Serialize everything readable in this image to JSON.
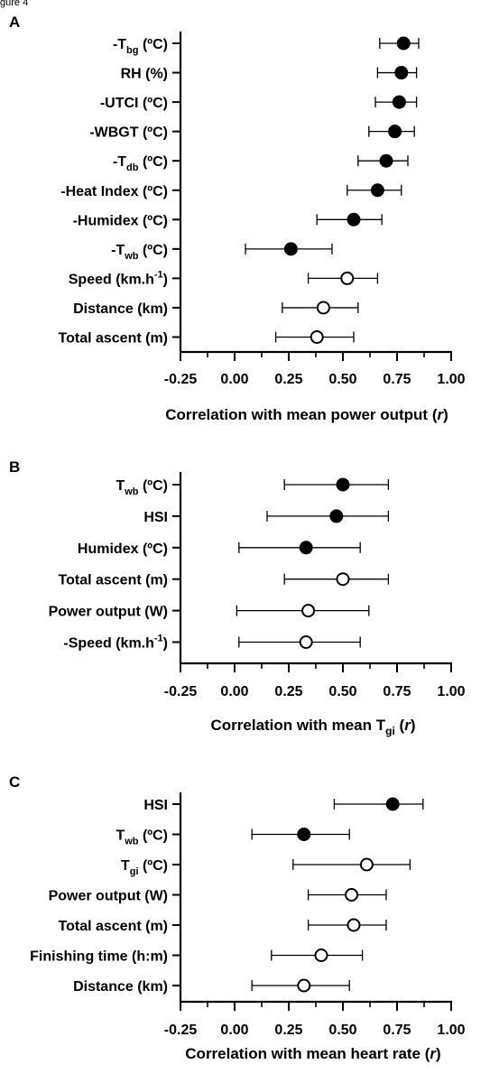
{
  "figure_label": "gure 4",
  "chart_data": [
    {
      "panel": "A",
      "type": "scatter",
      "xlabel_parts": [
        {
          "t": "Correlation with mean power output ("
        },
        {
          "t": "r",
          "i": true
        },
        {
          "t": ")"
        }
      ],
      "xlim": [
        -0.25,
        1.0
      ],
      "xticks": [
        "-0.25",
        "0.00",
        "0.25",
        "0.50",
        "0.75",
        "1.00"
      ],
      "xtick_values": [
        -0.25,
        0.0,
        0.25,
        0.5,
        0.75,
        1.0
      ],
      "grid": false,
      "rows": [
        {
          "label": [
            {
              "t": "-T"
            },
            {
              "t": "bg",
              "sub": true
            },
            {
              "t": " (ºC)"
            }
          ],
          "label_text": "-Tbg (ºC)",
          "r": 0.78,
          "lo": 0.67,
          "hi": 0.85,
          "filled": true
        },
        {
          "label": [
            {
              "t": "RH (%)"
            }
          ],
          "label_text": "RH (%)",
          "r": 0.77,
          "lo": 0.66,
          "hi": 0.84,
          "filled": true
        },
        {
          "label": [
            {
              "t": "-UTCI (ºC)"
            }
          ],
          "label_text": "-UTCI (ºC)",
          "r": 0.76,
          "lo": 0.65,
          "hi": 0.84,
          "filled": true
        },
        {
          "label": [
            {
              "t": "-WBGT (ºC)"
            }
          ],
          "label_text": "-WBGT (ºC)",
          "r": 0.74,
          "lo": 0.62,
          "hi": 0.83,
          "filled": true
        },
        {
          "label": [
            {
              "t": "-T"
            },
            {
              "t": "db",
              "sub": true
            },
            {
              "t": " (ºC)"
            }
          ],
          "label_text": "-Tdb (ºC)",
          "r": 0.7,
          "lo": 0.57,
          "hi": 0.8,
          "filled": true
        },
        {
          "label": [
            {
              "t": "-Heat Index (ºC)"
            }
          ],
          "label_text": "-Heat Index (ºC)",
          "r": 0.66,
          "lo": 0.52,
          "hi": 0.77,
          "filled": true
        },
        {
          "label": [
            {
              "t": "-Humidex (ºC)"
            }
          ],
          "label_text": "-Humidex (ºC)",
          "r": 0.55,
          "lo": 0.38,
          "hi": 0.68,
          "filled": true
        },
        {
          "label": [
            {
              "t": "-T"
            },
            {
              "t": "wb",
              "sub": true
            },
            {
              "t": " (ºC)"
            }
          ],
          "label_text": "-Twb (ºC)",
          "r": 0.26,
          "lo": 0.05,
          "hi": 0.45,
          "filled": true
        },
        {
          "label": [
            {
              "t": "Speed (km.h"
            },
            {
              "t": "-1",
              "sup": true
            },
            {
              "t": ")"
            }
          ],
          "label_text": "Speed (km.h-1)",
          "r": 0.52,
          "lo": 0.34,
          "hi": 0.66,
          "filled": false
        },
        {
          "label": [
            {
              "t": "Distance (km)"
            }
          ],
          "label_text": "Distance (km)",
          "r": 0.41,
          "lo": 0.22,
          "hi": 0.57,
          "filled": false
        },
        {
          "label": [
            {
              "t": "Total ascent (m)"
            }
          ],
          "label_text": "Total ascent (m)",
          "r": 0.38,
          "lo": 0.19,
          "hi": 0.55,
          "filled": false
        }
      ]
    },
    {
      "panel": "B",
      "type": "scatter",
      "xlabel_parts": [
        {
          "t": "Correlation with mean T"
        },
        {
          "t": "gi",
          "sub": true
        },
        {
          "t": " ("
        },
        {
          "t": "r",
          "i": true
        },
        {
          "t": ")"
        }
      ],
      "xlim": [
        -0.25,
        1.0
      ],
      "xticks": [
        "-0.25",
        "0.00",
        "0.25",
        "0.50",
        "0.75",
        "1.00"
      ],
      "xtick_values": [
        -0.25,
        0.0,
        0.25,
        0.5,
        0.75,
        1.0
      ],
      "grid": false,
      "rows": [
        {
          "label": [
            {
              "t": "T"
            },
            {
              "t": "wb",
              "sub": true
            },
            {
              "t": " (ºC)"
            }
          ],
          "label_text": "Twb (ºC)",
          "r": 0.5,
          "lo": 0.23,
          "hi": 0.71,
          "filled": true
        },
        {
          "label": [
            {
              "t": "HSI"
            }
          ],
          "label_text": "HSI",
          "r": 0.47,
          "lo": 0.15,
          "hi": 0.71,
          "filled": true
        },
        {
          "label": [
            {
              "t": "Humidex (ºC)"
            }
          ],
          "label_text": "Humidex (ºC)",
          "r": 0.33,
          "lo": 0.02,
          "hi": 0.58,
          "filled": true
        },
        {
          "label": [
            {
              "t": "Total ascent (m)"
            }
          ],
          "label_text": "Total ascent (m)",
          "r": 0.5,
          "lo": 0.23,
          "hi": 0.71,
          "filled": false
        },
        {
          "label": [
            {
              "t": "Power output (W)"
            }
          ],
          "label_text": "Power output (W)",
          "r": 0.34,
          "lo": 0.01,
          "hi": 0.62,
          "filled": false
        },
        {
          "label": [
            {
              "t": "-Speed (km.h"
            },
            {
              "t": "-1",
              "sup": true
            },
            {
              "t": ")"
            }
          ],
          "label_text": "-Speed (km.h-1)",
          "r": 0.33,
          "lo": 0.02,
          "hi": 0.58,
          "filled": false
        }
      ]
    },
    {
      "panel": "C",
      "type": "scatter",
      "xlabel_parts": [
        {
          "t": "Correlation with mean heart rate ("
        },
        {
          "t": "r",
          "i": true
        },
        {
          "t": ")"
        }
      ],
      "xlim": [
        -0.25,
        1.0
      ],
      "xticks": [
        "-0.25",
        "0.00",
        "0.25",
        "0.50",
        "0.75",
        "1.00"
      ],
      "xtick_values": [
        -0.25,
        0.0,
        0.25,
        0.5,
        0.75,
        1.0
      ],
      "grid": false,
      "rows": [
        {
          "label": [
            {
              "t": "HSI"
            }
          ],
          "label_text": "HSI",
          "r": 0.73,
          "lo": 0.46,
          "hi": 0.87,
          "filled": true
        },
        {
          "label": [
            {
              "t": "T"
            },
            {
              "t": "wb",
              "sub": true
            },
            {
              "t": " (ºC)"
            }
          ],
          "label_text": "Twb (ºC)",
          "r": 0.32,
          "lo": 0.08,
          "hi": 0.53,
          "filled": true
        },
        {
          "label": [
            {
              "t": "T"
            },
            {
              "t": "gi",
              "sub": true
            },
            {
              "t": " (ºC)"
            }
          ],
          "label_text": "Tgi (ºC)",
          "r": 0.61,
          "lo": 0.27,
          "hi": 0.81,
          "filled": false
        },
        {
          "label": [
            {
              "t": "Power output (W)"
            }
          ],
          "label_text": "Power output (W)",
          "r": 0.54,
          "lo": 0.34,
          "hi": 0.7,
          "filled": false
        },
        {
          "label": [
            {
              "t": "Total ascent (m)"
            }
          ],
          "label_text": "Total ascent (m)",
          "r": 0.55,
          "lo": 0.34,
          "hi": 0.7,
          "filled": false
        },
        {
          "label": [
            {
              "t": "Finishing time (h:m)"
            }
          ],
          "label_text": "Finishing time (h:m)",
          "r": 0.4,
          "lo": 0.17,
          "hi": 0.59,
          "filled": false
        },
        {
          "label": [
            {
              "t": "Distance (km)"
            }
          ],
          "label_text": "Distance (km)",
          "r": 0.32,
          "lo": 0.08,
          "hi": 0.53,
          "filled": false
        }
      ]
    }
  ]
}
